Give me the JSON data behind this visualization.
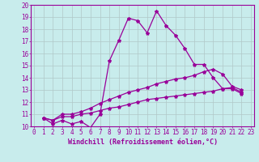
{
  "title": "",
  "xlabel": "Windchill (Refroidissement éolien,°C)",
  "bg_color": "#c8ecec",
  "line_color": "#990099",
  "grid_color": "#b0c8c8",
  "xmin": 0,
  "xmax": 23,
  "ymin": 10,
  "ymax": 20,
  "series": [
    [
      10.7,
      10.2,
      10.5,
      10.2,
      10.4,
      9.9,
      11.0,
      15.4,
      17.1,
      18.9,
      18.7,
      17.7,
      19.5,
      18.3,
      17.5,
      16.4,
      15.1,
      15.1,
      14.0,
      13.1,
      13.1,
      12.7
    ],
    [
      10.7,
      10.5,
      11.0,
      11.0,
      11.2,
      11.5,
      11.9,
      12.2,
      12.5,
      12.8,
      13.0,
      13.2,
      13.5,
      13.7,
      13.9,
      14.0,
      14.2,
      14.5,
      14.7,
      14.3,
      13.3,
      13.0
    ],
    [
      10.7,
      10.5,
      10.8,
      10.8,
      11.0,
      11.1,
      11.3,
      11.5,
      11.6,
      11.8,
      12.0,
      12.2,
      12.3,
      12.4,
      12.5,
      12.6,
      12.7,
      12.8,
      12.9,
      13.1,
      13.2,
      12.8
    ]
  ],
  "x_start": 1,
  "xtick_labels": [
    "0",
    "1",
    "2",
    "3",
    "4",
    "5",
    "6",
    "7",
    "8",
    "9",
    "10",
    "11",
    "12",
    "13",
    "14",
    "15",
    "16",
    "17",
    "18",
    "19",
    "20",
    "21",
    "22",
    "23"
  ],
  "ytick_labels": [
    "10",
    "11",
    "12",
    "13",
    "14",
    "15",
    "16",
    "17",
    "18",
    "19",
    "20"
  ],
  "xlabel_fontsize": 6.0,
  "tick_fontsize": 5.5,
  "marker_size": 3.0,
  "line_width": 0.9
}
